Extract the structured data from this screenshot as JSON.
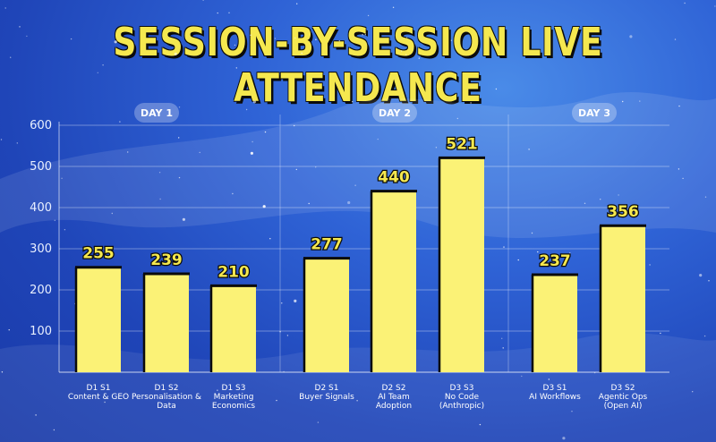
{
  "chart_data": {
    "type": "bar",
    "title": "SESSION-BY-SESSION LIVE ATTENDANCE",
    "xlabel": "",
    "ylabel": "",
    "ylim": [
      0,
      600
    ],
    "yticks": [
      100,
      200,
      300,
      400,
      500,
      600
    ],
    "grid": true,
    "groups": [
      {
        "label": "DAY 1",
        "categories": [
          0,
          1,
          2
        ]
      },
      {
        "label": "DAY 2",
        "categories": [
          3,
          4,
          5
        ]
      },
      {
        "label": "DAY 3",
        "categories": [
          6,
          7
        ]
      }
    ],
    "categories": [
      [
        "D1 S1",
        "Content & GEO"
      ],
      [
        "D1 S2",
        "Personalisation &",
        "Data"
      ],
      [
        "D1 S3",
        "Marketing",
        "Economics"
      ],
      [
        "D2 S1",
        "Buyer Signals"
      ],
      [
        "D2 S2",
        "AI Team",
        "Adoption"
      ],
      [
        "D3 S3",
        "No Code",
        "(Anthropic)"
      ],
      [
        "D3 S1",
        "AI Workflows"
      ],
      [
        "D3 S2",
        "Agentic Ops",
        "(Open AI)"
      ]
    ],
    "values": [
      255,
      239,
      210,
      277,
      440,
      521,
      237,
      356
    ],
    "colors": {
      "bar": "#fbf276",
      "bar_edge": "#0b0b0b",
      "label": "#f5e84f"
    }
  }
}
